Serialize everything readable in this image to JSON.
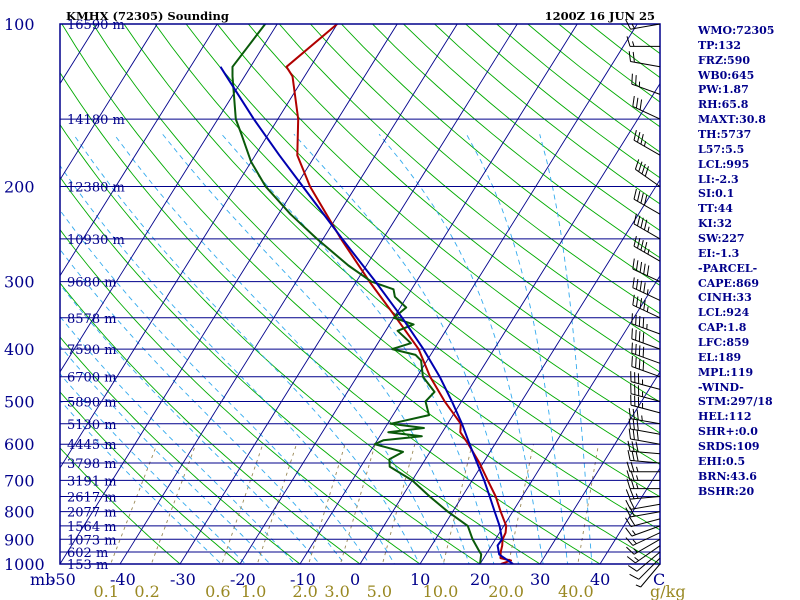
{
  "header": {
    "station": "KMHX (72305) Sounding",
    "time": "1200Z 16 JUN 25"
  },
  "colors": {
    "isobar": "#00008b",
    "skew_isotherm": "#00008b",
    "dry_adiabat": "#00aa00",
    "moist_adiabat": "#33aaee",
    "mixing_ratio": "#998855",
    "temperature": "#b00000",
    "dewpoint": "#0a5a0a",
    "parcel": "#0000b0",
    "label_text": "#00008b",
    "axis_bottom_temp": "#00008b",
    "axis_bottom_mixing": "#998822",
    "wind_barb": "#000000"
  },
  "chart_data": {
    "type": "skew-t log-p sounding",
    "title": "KMHX (72305) Sounding",
    "subtitle": "1200Z 16 JUN 25",
    "y_axis": {
      "unit_label": "mb",
      "scale": "log",
      "range_mb": [
        1000,
        100
      ]
    },
    "x_axis": {
      "temperature_ticks": [
        -50,
        -40,
        -30,
        -20,
        -10,
        0,
        10,
        20,
        30,
        40
      ],
      "range_c": [
        -50,
        50
      ]
    },
    "pressure_levels": [
      {
        "p": 100,
        "label": "100",
        "height": "16590 m"
      },
      {
        "p": 150,
        "label": "",
        "height": "14180 m"
      },
      {
        "p": 200,
        "label": "200",
        "height": "12380 m"
      },
      {
        "p": 250,
        "label": "",
        "height": "10930 m"
      },
      {
        "p": 300,
        "label": "300",
        "height": "9680 m"
      },
      {
        "p": 350,
        "label": "",
        "height": "8578 m"
      },
      {
        "p": 400,
        "label": "400",
        "height": "7590 m"
      },
      {
        "p": 450,
        "label": "",
        "height": "6700 m"
      },
      {
        "p": 500,
        "label": "500",
        "height": "5890 m"
      },
      {
        "p": 550,
        "label": "",
        "height": "5130 m"
      },
      {
        "p": 600,
        "label": "600",
        "height": "4445 m"
      },
      {
        "p": 650,
        "label": "",
        "height": "3798 m"
      },
      {
        "p": 700,
        "label": "700",
        "height": "3191 m"
      },
      {
        "p": 750,
        "label": "",
        "height": "2617 m"
      },
      {
        "p": 800,
        "label": "800",
        "height": "2077 m"
      },
      {
        "p": 850,
        "label": "",
        "height": "1564 m"
      },
      {
        "p": 900,
        "label": "900",
        "height": "1073 m"
      },
      {
        "p": 950,
        "label": "",
        "height": "602 m"
      },
      {
        "p": 1000,
        "label": "1000",
        "height": "153 m"
      }
    ],
    "mixing_ratio_labels": [
      {
        "label": "0.1",
        "value": 0.1
      },
      {
        "label": "0.2",
        "value": 0.2
      },
      {
        "label": "0.6",
        "value": 0.6
      },
      {
        "label": "1.0",
        "value": 1.0
      },
      {
        "label": "2.0",
        "value": 2.0
      },
      {
        "label": "3.0",
        "value": 3.0
      },
      {
        "label": "5.0",
        "value": 5.0
      },
      {
        "label": "10.0",
        "value": 10.0
      },
      {
        "label": "20.0",
        "value": 20.0
      },
      {
        "label": "40.0",
        "value": 40.0
      }
    ],
    "mixing_ratio_unit": "g/kg",
    "series": [
      {
        "values": [
          {
            "p": 1000,
            "t": 23.5
          },
          {
            "p": 985,
            "t": 24.8
          },
          {
            "p": 975,
            "t": 22.8
          },
          {
            "p": 950,
            "t": 22.2
          },
          {
            "p": 925,
            "t": 21.8
          },
          {
            "p": 900,
            "t": 21.2
          },
          {
            "p": 875,
            "t": 21.0
          },
          {
            "p": 850,
            "t": 20.4
          },
          {
            "p": 800,
            "t": 18.0
          },
          {
            "p": 750,
            "t": 15.6
          },
          {
            "p": 700,
            "t": 12.6
          },
          {
            "p": 650,
            "t": 9.4
          },
          {
            "p": 600,
            "t": 5.6
          },
          {
            "p": 570,
            "t": 3.0
          },
          {
            "p": 550,
            "t": 2.2
          },
          {
            "p": 500,
            "t": -2.8
          },
          {
            "p": 450,
            "t": -7.8
          },
          {
            "p": 400,
            "t": -12.6
          },
          {
            "p": 350,
            "t": -19.6
          },
          {
            "p": 300,
            "t": -27.8
          },
          {
            "p": 250,
            "t": -37.0
          },
          {
            "p": 200,
            "t": -47.6
          },
          {
            "p": 175,
            "t": -53.0
          },
          {
            "p": 150,
            "t": -56.6
          },
          {
            "p": 125,
            "t": -62.0
          },
          {
            "p": 120,
            "t": -64.0
          },
          {
            "p": 100,
            "t": -60.0
          }
        ]
      },
      {
        "values": [
          {
            "p": 1000,
            "t": 20.0
          },
          {
            "p": 960,
            "t": 19.2
          },
          {
            "p": 940,
            "t": 18.2
          },
          {
            "p": 900,
            "t": 16.2
          },
          {
            "p": 850,
            "t": 14.0
          },
          {
            "p": 800,
            "t": 9.2
          },
          {
            "p": 750,
            "t": 4.6
          },
          {
            "p": 700,
            "t": 0.0
          },
          {
            "p": 660,
            "t": -5.2
          },
          {
            "p": 640,
            "t": -6.0
          },
          {
            "p": 620,
            "t": -4.5
          },
          {
            "p": 600,
            "t": -10.0
          },
          {
            "p": 590,
            "t": -9.0
          },
          {
            "p": 580,
            "t": -3.0
          },
          {
            "p": 570,
            "t": -9.0
          },
          {
            "p": 560,
            "t": -3.5
          },
          {
            "p": 550,
            "t": -9.5
          },
          {
            "p": 530,
            "t": -4.0
          },
          {
            "p": 500,
            "t": -6.0
          },
          {
            "p": 480,
            "t": -5.5
          },
          {
            "p": 450,
            "t": -9.0
          },
          {
            "p": 420,
            "t": -11.0
          },
          {
            "p": 410,
            "t": -12.5
          },
          {
            "p": 400,
            "t": -17.0
          },
          {
            "p": 390,
            "t": -14.5
          },
          {
            "p": 370,
            "t": -18.0
          },
          {
            "p": 360,
            "t": -16.0
          },
          {
            "p": 350,
            "t": -20.0
          },
          {
            "p": 335,
            "t": -19.0
          },
          {
            "p": 320,
            "t": -22.0
          },
          {
            "p": 310,
            "t": -23.0
          },
          {
            "p": 300,
            "t": -27.5
          },
          {
            "p": 280,
            "t": -33.0
          },
          {
            "p": 250,
            "t": -41.0
          },
          {
            "p": 225,
            "t": -48.0
          },
          {
            "p": 200,
            "t": -55.0
          },
          {
            "p": 180,
            "t": -60.0
          },
          {
            "p": 160,
            "t": -64.5
          },
          {
            "p": 150,
            "t": -67.0
          },
          {
            "p": 125,
            "t": -72.0
          },
          {
            "p": 120,
            "t": -73.0
          },
          {
            "p": 100,
            "t": -72.0
          }
        ]
      },
      {
        "values": [
          {
            "p": 1000,
            "t": 25.5
          },
          {
            "p": 960,
            "t": 22.2
          },
          {
            "p": 924,
            "t": 21.0
          },
          {
            "p": 900,
            "t": 21.1
          },
          {
            "p": 850,
            "t": 19.3
          },
          {
            "p": 800,
            "t": 17.0
          },
          {
            "p": 750,
            "t": 14.6
          },
          {
            "p": 700,
            "t": 12.0
          },
          {
            "p": 650,
            "t": 9.0
          },
          {
            "p": 600,
            "t": 5.8
          },
          {
            "p": 550,
            "t": 2.4
          },
          {
            "p": 500,
            "t": -1.6
          },
          {
            "p": 450,
            "t": -6.2
          },
          {
            "p": 400,
            "t": -11.8
          },
          {
            "p": 350,
            "t": -18.6
          },
          {
            "p": 300,
            "t": -26.8
          },
          {
            "p": 250,
            "t": -36.8
          },
          {
            "p": 200,
            "t": -48.8
          },
          {
            "p": 175,
            "t": -56.0
          },
          {
            "p": 150,
            "t": -64.0
          },
          {
            "p": 125,
            "t": -73.0
          },
          {
            "p": 120,
            "t": -75.0
          }
        ]
      }
    ],
    "wind_barbs": [
      {
        "p": 1000,
        "dir": 220,
        "spd": 5
      },
      {
        "p": 975,
        "dir": 225,
        "spd": 10
      },
      {
        "p": 950,
        "dir": 230,
        "spd": 10
      },
      {
        "p": 925,
        "dir": 235,
        "spd": 15
      },
      {
        "p": 900,
        "dir": 240,
        "spd": 15
      },
      {
        "p": 875,
        "dir": 245,
        "spd": 15
      },
      {
        "p": 850,
        "dir": 250,
        "spd": 15
      },
      {
        "p": 825,
        "dir": 255,
        "spd": 20
      },
      {
        "p": 800,
        "dir": 260,
        "spd": 20
      },
      {
        "p": 775,
        "dir": 260,
        "spd": 20
      },
      {
        "p": 750,
        "dir": 265,
        "spd": 25
      },
      {
        "p": 725,
        "dir": 270,
        "spd": 25
      },
      {
        "p": 700,
        "dir": 270,
        "spd": 25
      },
      {
        "p": 675,
        "dir": 270,
        "spd": 25
      },
      {
        "p": 650,
        "dir": 275,
        "spd": 30
      },
      {
        "p": 625,
        "dir": 275,
        "spd": 30
      },
      {
        "p": 600,
        "dir": 280,
        "spd": 30
      },
      {
        "p": 575,
        "dir": 280,
        "spd": 30
      },
      {
        "p": 550,
        "dir": 280,
        "spd": 35
      },
      {
        "p": 525,
        "dir": 285,
        "spd": 35
      },
      {
        "p": 500,
        "dir": 285,
        "spd": 35
      },
      {
        "p": 475,
        "dir": 285,
        "spd": 35
      },
      {
        "p": 450,
        "dir": 290,
        "spd": 40
      },
      {
        "p": 425,
        "dir": 290,
        "spd": 40
      },
      {
        "p": 400,
        "dir": 290,
        "spd": 40
      },
      {
        "p": 375,
        "dir": 290,
        "spd": 45
      },
      {
        "p": 350,
        "dir": 295,
        "spd": 45
      },
      {
        "p": 325,
        "dir": 295,
        "spd": 45
      },
      {
        "p": 300,
        "dir": 295,
        "spd": 50
      },
      {
        "p": 275,
        "dir": 300,
        "spd": 45
      },
      {
        "p": 250,
        "dir": 300,
        "spd": 45
      },
      {
        "p": 225,
        "dir": 300,
        "spd": 40
      },
      {
        "p": 200,
        "dir": 305,
        "spd": 40
      },
      {
        "p": 175,
        "dir": 300,
        "spd": 35
      },
      {
        "p": 150,
        "dir": 295,
        "spd": 30
      },
      {
        "p": 135,
        "dir": 290,
        "spd": 25
      },
      {
        "p": 120,
        "dir": 280,
        "spd": 20
      },
      {
        "p": 110,
        "dir": 270,
        "spd": 15
      },
      {
        "p": 100,
        "dir": 260,
        "spd": 15
      }
    ]
  },
  "sidebar": {
    "items": [
      "WMO:72305",
      "TP:132",
      "FRZ:590",
      "WB0:645",
      "PW:1.87",
      "RH:65.8",
      "MAXT:30.8",
      "TH:5737",
      "L57:5.5",
      "LCL:995",
      "LI:-2.3",
      "SI:0.1",
      "TT:44",
      "KI:32",
      "SW:227",
      "EI:-1.3",
      "-PARCEL-",
      "CAPE:869",
      "CINH:33",
      "LCL:924",
      "CAP:1.8",
      "LFC:859",
      "EL:189",
      "MPL:119",
      "-WIND-",
      "STM:297/18",
      "HEL:112",
      "SHR+:0.0",
      "SRDS:109",
      "EHI:0.5",
      "BRN:43.6",
      "BSHR:20"
    ]
  }
}
